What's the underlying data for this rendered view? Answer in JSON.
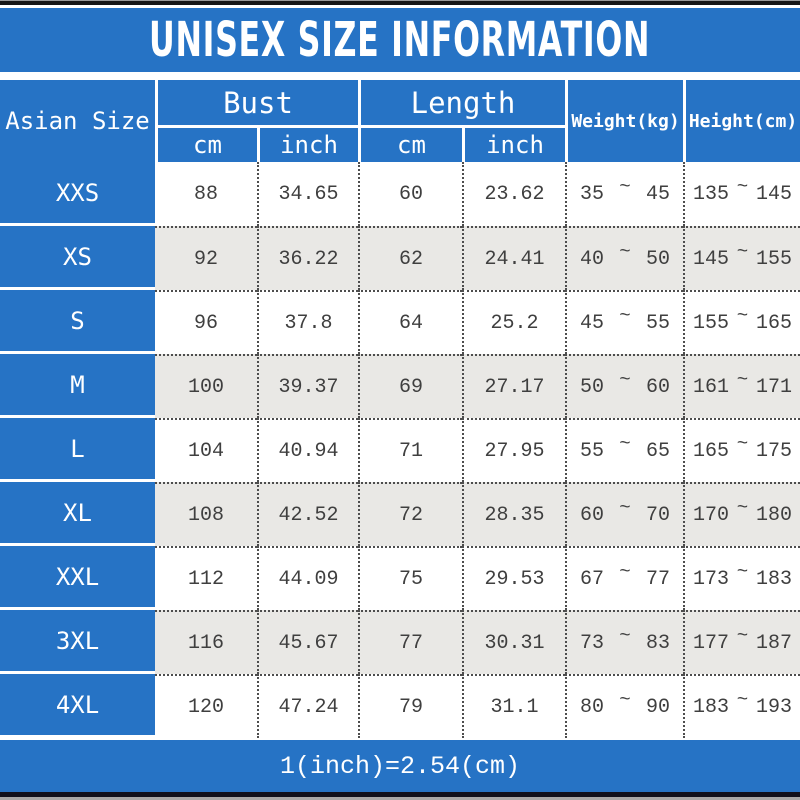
{
  "title": "UNISEX SIZE INFORMATION",
  "labels": {
    "corner": "Asian Size",
    "bust": "Bust",
    "length": "Length",
    "cm": "cm",
    "inch": "inch",
    "weight": "Weight(kg)",
    "height": "Height(cm)",
    "tilde": "~"
  },
  "footer_note": "1(inch)=2.54(cm)",
  "colors": {
    "blue": "#2673c5",
    "alt_row": "#e9e8e5",
    "row": "#ffffff",
    "header_text": "#ffffff",
    "data_text": "#3f3f3f"
  },
  "chart_data": {
    "type": "table",
    "title": "UNISEX SIZE INFORMATION",
    "columns": [
      "Asian Size",
      "Bust cm",
      "Bust inch",
      "Length cm",
      "Length inch",
      "Weight(kg) min",
      "Weight(kg) max",
      "Height(cm) min",
      "Height(cm) max"
    ],
    "rows": [
      [
        "XXS",
        88,
        34.65,
        60,
        23.62,
        35,
        45,
        135,
        145
      ],
      [
        "XS",
        92,
        36.22,
        62,
        24.41,
        40,
        50,
        145,
        155
      ],
      [
        "S",
        96,
        37.8,
        64,
        25.2,
        45,
        55,
        155,
        165
      ],
      [
        "M",
        100,
        39.37,
        69,
        27.17,
        50,
        60,
        161,
        171
      ],
      [
        "L",
        104,
        40.94,
        71,
        27.95,
        55,
        65,
        165,
        175
      ],
      [
        "XL",
        108,
        42.52,
        72,
        28.35,
        60,
        70,
        170,
        180
      ],
      [
        "XXL",
        112,
        44.09,
        75,
        29.53,
        67,
        77,
        173,
        183
      ],
      [
        "3XL",
        116,
        45.67,
        77,
        30.31,
        73,
        83,
        177,
        187
      ],
      [
        "4XL",
        120,
        47.24,
        79,
        31.1,
        80,
        90,
        183,
        193
      ]
    ],
    "note": "1(inch)=2.54(cm)"
  }
}
